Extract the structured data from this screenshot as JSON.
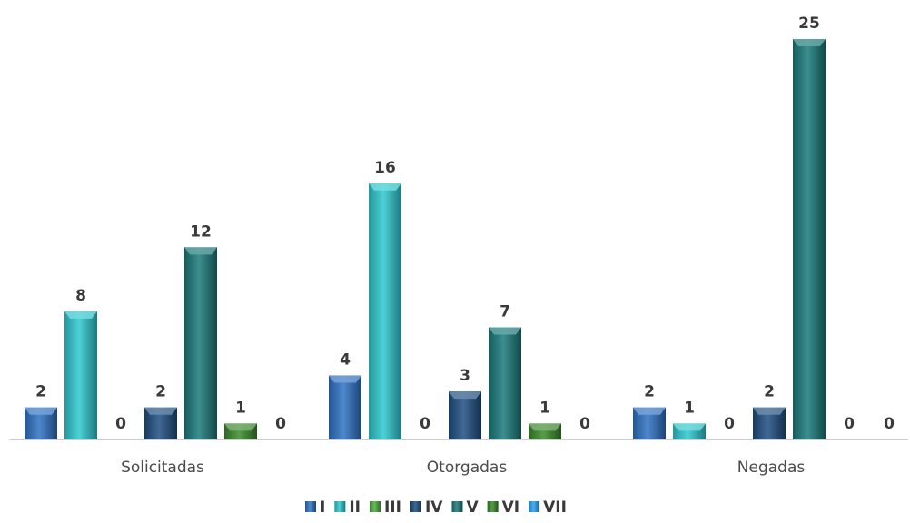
{
  "chart_data": {
    "type": "bar",
    "categories": [
      "Solicitadas",
      "Otorgadas",
      "Negadas"
    ],
    "series": [
      {
        "name": "I",
        "values": [
          2,
          4,
          2
        ],
        "color": "#2f72c4"
      },
      {
        "name": "II",
        "values": [
          8,
          16,
          1
        ],
        "color": "#2ec9d0"
      },
      {
        "name": "III",
        "values": [
          0,
          0,
          0
        ],
        "color": "#4caf3c"
      },
      {
        "name": "IV",
        "values": [
          2,
          3,
          2
        ],
        "color": "#1f4f82"
      },
      {
        "name": "V",
        "values": [
          12,
          7,
          25
        ],
        "color": "#1a7a7a"
      },
      {
        "name": "VI",
        "values": [
          1,
          1,
          0
        ],
        "color": "#3a8a2a"
      },
      {
        "name": "VII",
        "values": [
          0,
          0,
          0
        ],
        "color": "#2aa0f0"
      }
    ],
    "data_labels": true,
    "ylim": [
      0,
      25
    ],
    "grid": false,
    "legend_position": "bottom",
    "title": "",
    "xlabel": "",
    "ylabel": ""
  }
}
